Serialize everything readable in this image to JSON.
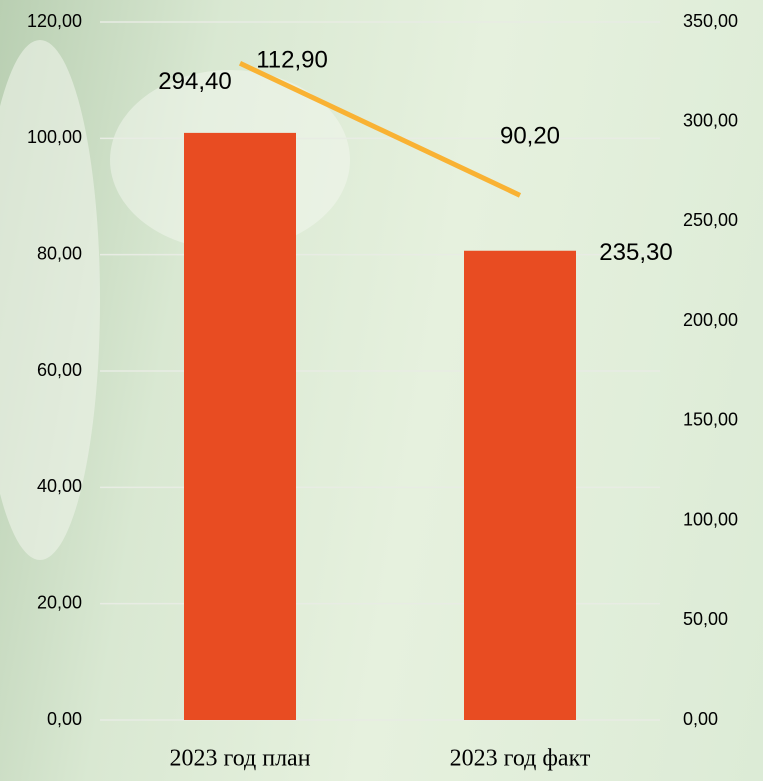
{
  "chart_data": {
    "type": "bar-line",
    "categories": [
      "2023 год план",
      "2023 год факт"
    ],
    "series": [
      {
        "type": "bar",
        "axis": "y2",
        "color": "#e84c22",
        "values": [
          294.4,
          235.3
        ],
        "value_labels": [
          "294,40",
          "235,30"
        ]
      },
      {
        "type": "line",
        "axis": "y",
        "color": "#f9b233",
        "values": [
          112.9,
          90.2
        ],
        "value_labels": [
          "112,90",
          "90,20"
        ]
      }
    ],
    "ylim": [
      0,
      120
    ],
    "yticks": [
      {
        "value": 0,
        "label": "0,00"
      },
      {
        "value": 20,
        "label": "20,00"
      },
      {
        "value": 40,
        "label": "40,00"
      },
      {
        "value": 60,
        "label": "60,00"
      },
      {
        "value": 80,
        "label": "80,00"
      },
      {
        "value": 100,
        "label": "100,00"
      },
      {
        "value": 120,
        "label": "120,00"
      }
    ],
    "y2lim": [
      0,
      350
    ],
    "y2ticks": [
      {
        "value": 0,
        "label": "0,00"
      },
      {
        "value": 50,
        "label": "50,00"
      },
      {
        "value": 100,
        "label": "100,00"
      },
      {
        "value": 150,
        "label": "150,00"
      },
      {
        "value": 200,
        "label": "200,00"
      },
      {
        "value": 250,
        "label": "250,00"
      },
      {
        "value": 300,
        "label": "300,00"
      },
      {
        "value": 350,
        "label": "350,00"
      }
    ],
    "grid": true
  }
}
